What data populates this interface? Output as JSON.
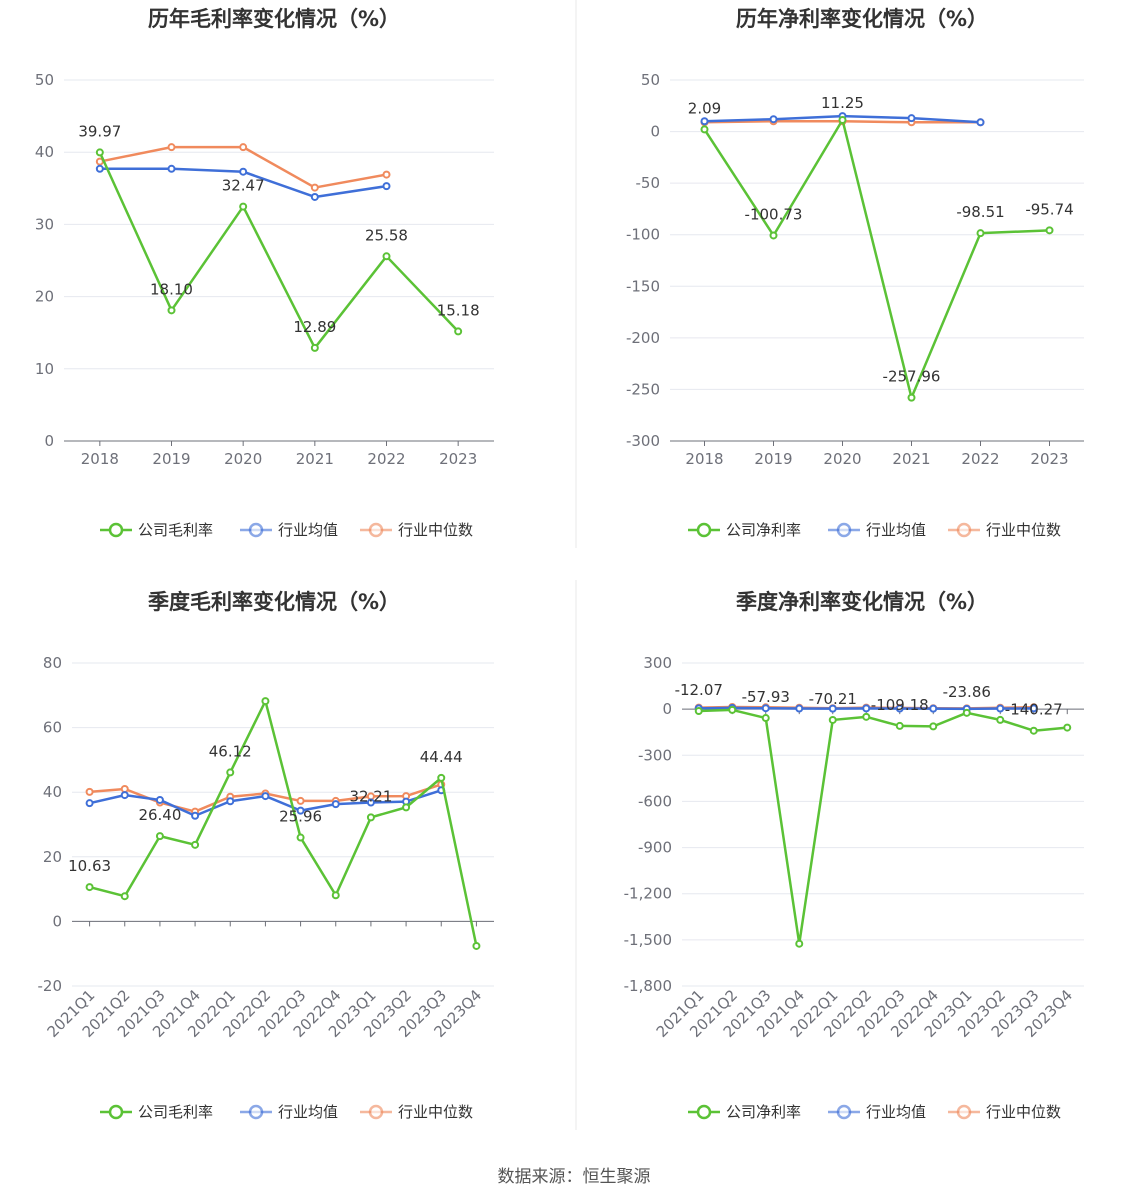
{
  "colors": {
    "company": "#5bc236",
    "avg": "#3f6fd8",
    "median": "#f08a5d"
  },
  "legend_icons": [
    "circle-line-icon",
    "circle-line-icon",
    "circle-line-icon"
  ],
  "source_text": "数据来源：恒生聚源",
  "chart_data": [
    {
      "type": "line",
      "title": "历年毛利率变化情况（%）",
      "categories": [
        "2018",
        "2019",
        "2020",
        "2021",
        "2022",
        "2023"
      ],
      "yticks": [
        0,
        10,
        20,
        30,
        40,
        50
      ],
      "ylim": [
        0,
        50
      ],
      "grid": true,
      "legend_position": "bottom",
      "series": [
        {
          "name": "公司毛利率",
          "key": "company",
          "values": [
            39.97,
            18.1,
            32.47,
            12.89,
            25.58,
            15.18
          ],
          "labels": [
            "39.97",
            "18.10",
            "32.47",
            "12.89",
            "25.58",
            "15.18"
          ]
        },
        {
          "name": "行业均值",
          "key": "avg",
          "values": [
            37.7,
            37.7,
            37.3,
            33.8,
            35.3,
            null
          ]
        },
        {
          "name": "行业中位数",
          "key": "median",
          "values": [
            38.7,
            40.7,
            40.7,
            35.1,
            36.9,
            null
          ]
        }
      ]
    },
    {
      "type": "line",
      "title": "历年净利率变化情况（%）",
      "categories": [
        "2018",
        "2019",
        "2020",
        "2021",
        "2022",
        "2023"
      ],
      "yticks": [
        -300,
        -250,
        -200,
        -150,
        -100,
        -50,
        0,
        50
      ],
      "ylim": [
        -300,
        50
      ],
      "grid": true,
      "legend_position": "bottom",
      "series": [
        {
          "name": "公司净利率",
          "key": "company",
          "values": [
            2.09,
            -100.73,
            11.25,
            -257.96,
            -98.51,
            -95.74
          ],
          "labels": [
            "2.09",
            "-100.73",
            "11.25",
            "-257.96",
            "-98.51",
            "-95.74"
          ]
        },
        {
          "name": "行业均值",
          "key": "avg",
          "values": [
            10,
            12,
            15,
            13,
            9,
            null
          ]
        },
        {
          "name": "行业中位数",
          "key": "median",
          "values": [
            9,
            10,
            10,
            9,
            9,
            null
          ]
        }
      ]
    },
    {
      "type": "line",
      "title": "季度毛利率变化情况（%）",
      "categories": [
        "2021Q1",
        "2021Q2",
        "2021Q3",
        "2021Q4",
        "2022Q1",
        "2022Q2",
        "2022Q3",
        "2022Q4",
        "2023Q1",
        "2023Q2",
        "2023Q3",
        "2023Q4"
      ],
      "yticks": [
        -20,
        0,
        20,
        40,
        60,
        80
      ],
      "ylim": [
        -20,
        80
      ],
      "grid": true,
      "legend_position": "bottom",
      "series": [
        {
          "name": "公司毛利率",
          "key": "company",
          "values": [
            10.63,
            7.8,
            26.4,
            23.7,
            46.12,
            68.2,
            25.96,
            8.1,
            32.21,
            35.3,
            44.44,
            -7.6
          ],
          "labels": [
            "10.63",
            "",
            "26.40",
            "",
            "46.12",
            "",
            "25.96",
            "",
            "32.21",
            "",
            "44.44",
            ""
          ]
        },
        {
          "name": "行业均值",
          "key": "avg",
          "values": [
            36.6,
            39.1,
            37.6,
            32.7,
            37.2,
            38.8,
            34.3,
            36.3,
            36.8,
            37.1,
            40.6,
            null
          ]
        },
        {
          "name": "行业中位数",
          "key": "median",
          "values": [
            40.1,
            41.0,
            36.8,
            34.0,
            38.6,
            39.6,
            37.3,
            37.3,
            38.7,
            38.8,
            42.4,
            null
          ]
        }
      ]
    },
    {
      "type": "line",
      "title": "季度净利率变化情况（%）",
      "categories": [
        "2021Q1",
        "2021Q2",
        "2021Q3",
        "2021Q4",
        "2022Q1",
        "2022Q2",
        "2022Q3",
        "2022Q4",
        "2023Q1",
        "2023Q2",
        "2023Q3",
        "2023Q4"
      ],
      "yticks": [
        -1800,
        -1500,
        -1200,
        -900,
        -600,
        -300,
        0,
        300
      ],
      "ylim": [
        -1800,
        300
      ],
      "grid": true,
      "legend_position": "bottom",
      "series": [
        {
          "name": "公司净利率",
          "key": "company",
          "values": [
            -12.07,
            -5,
            -57.93,
            -1525,
            -70.21,
            -50,
            -109.18,
            -112,
            -23.86,
            -70,
            -140.27,
            -120
          ],
          "labels": [
            "-12.07",
            "",
            "-57.93",
            "",
            "-70.21",
            "",
            "-109.18",
            "",
            "-23.86",
            "",
            "-140.27",
            ""
          ]
        },
        {
          "name": "行业均值",
          "key": "avg",
          "values": [
            5,
            8,
            6,
            4,
            3,
            5,
            4,
            3,
            2,
            4,
            5,
            null
          ]
        },
        {
          "name": "行业中位数",
          "key": "median",
          "values": [
            10,
            14,
            12,
            9,
            6,
            10,
            8,
            6,
            5,
            9,
            12,
            null
          ]
        }
      ]
    }
  ]
}
